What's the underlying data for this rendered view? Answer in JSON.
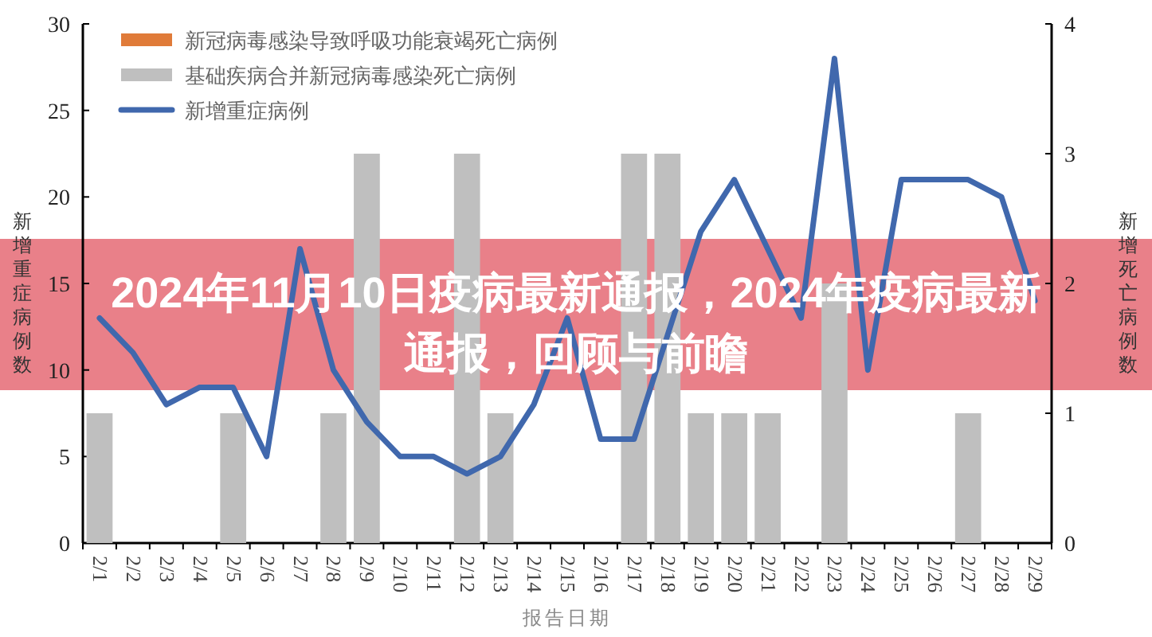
{
  "chart_data": {
    "type": "bar",
    "title": "2024年11月10日疫病最新通报，2024年疫病最新通报，回顾与前瞻",
    "xlabel": "报告日期",
    "ylabel": "新增重症病例数",
    "y2label": "新增死亡病例数",
    "categories": [
      "2/1",
      "2/2",
      "2/3",
      "2/4",
      "2/5",
      "2/6",
      "2/7",
      "2/8",
      "2/9",
      "2/10",
      "2/11",
      "2/12",
      "2/13",
      "2/14",
      "2/15",
      "2/16",
      "2/17",
      "2/18",
      "2/19",
      "2/20",
      "2/21",
      "2/22",
      "2/23",
      "2/24",
      "2/25",
      "2/26",
      "2/27",
      "2/28",
      "2/29"
    ],
    "series": [
      {
        "name": "新冠病毒感染导致呼吸功能衰竭死亡病例",
        "color": "#e07b39",
        "axis": "y2",
        "values": [
          0,
          0,
          0,
          0,
          0,
          0,
          0,
          0,
          0,
          0,
          0,
          0,
          0,
          0,
          0,
          0,
          0,
          0,
          0,
          0,
          0,
          0,
          0,
          0,
          0,
          0,
          0,
          0,
          0
        ]
      },
      {
        "name": "基础疾病合并新冠病毒感染死亡病例",
        "color": "#bfbfbf",
        "axis": "y2",
        "values": [
          1,
          0,
          0,
          0,
          1,
          0,
          0,
          1,
          3,
          0,
          0,
          3,
          1,
          0,
          0,
          0,
          3,
          3,
          1,
          1,
          1,
          0,
          2,
          0,
          0,
          0,
          1,
          0,
          0
        ]
      },
      {
        "name": "新增重症病例",
        "color": "#4068ad",
        "type": "line",
        "values": [
          13,
          11,
          8,
          9,
          9,
          5,
          17,
          10,
          7,
          5,
          5,
          4,
          5,
          8,
          13,
          6,
          6,
          12,
          18,
          21,
          17,
          13,
          28,
          10,
          21,
          21,
          21,
          20,
          14
        ]
      }
    ],
    "ylim": [
      0,
      30
    ],
    "yticks": [
      0,
      5,
      10,
      15,
      20,
      25,
      30
    ],
    "y2lim": [
      0,
      4
    ],
    "y2ticks": [
      0,
      1,
      2,
      3,
      4
    ],
    "legend": "top left"
  }
}
